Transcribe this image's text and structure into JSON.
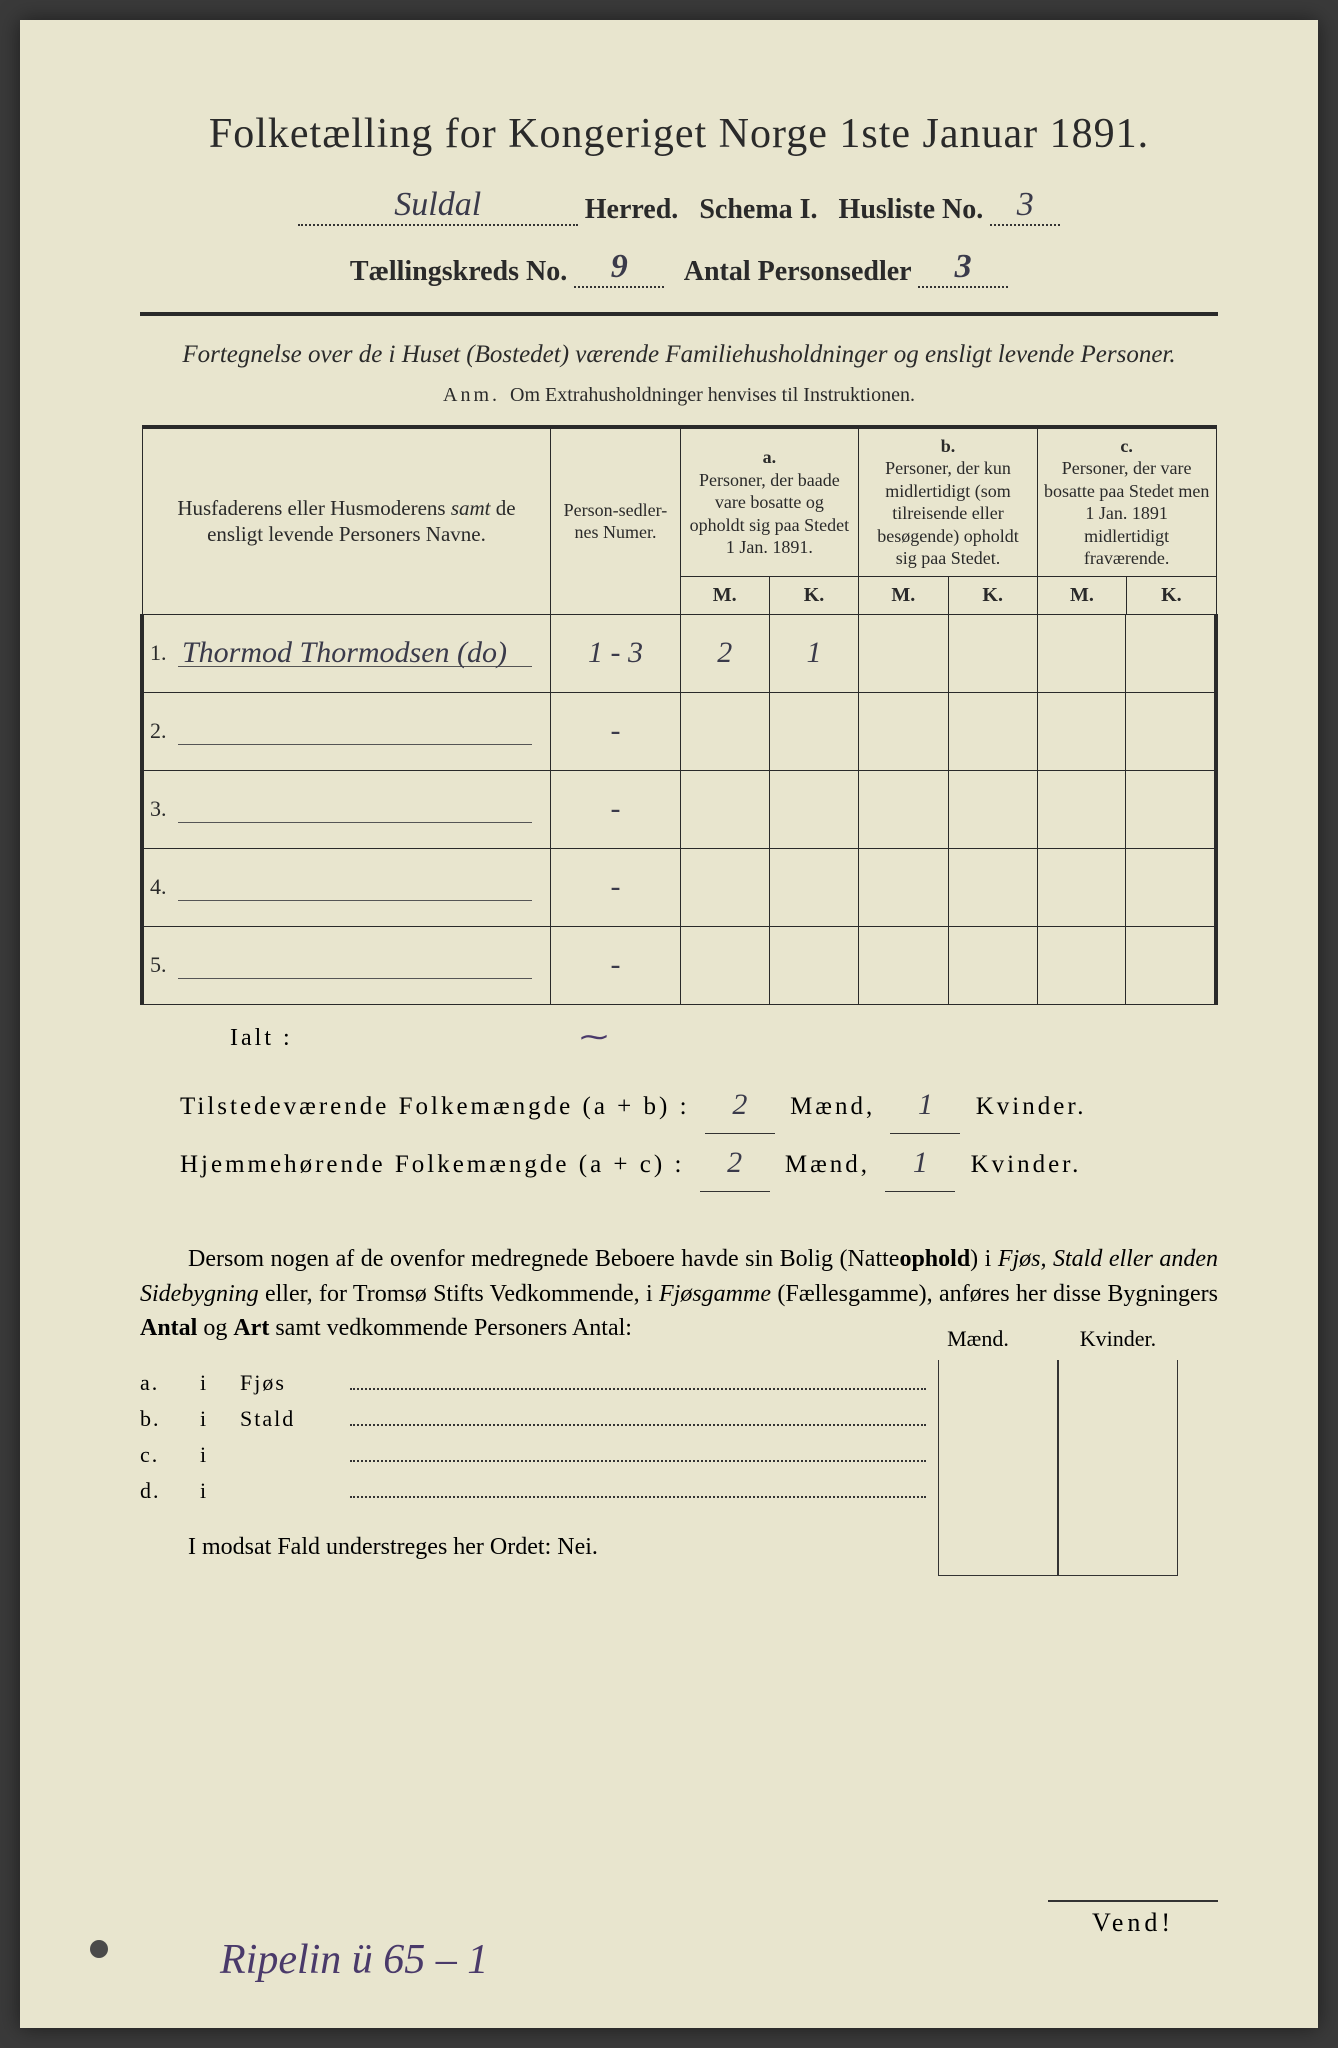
{
  "header": {
    "title": "Folketælling for Kongeriget Norge 1ste Januar 1891.",
    "herred_value": "Suldal",
    "herred_label": "Herred.",
    "schema_label": "Schema I.",
    "husliste_label": "Husliste No.",
    "husliste_value": "3",
    "kreds_label": "Tællingskreds No.",
    "kreds_value": "9",
    "sedler_label": "Antal Personsedler",
    "sedler_value": "3"
  },
  "subheading": "Fortegnelse over de i Huset (Bostedet) værende Familiehusholdninger og ensligt levende Personer.",
  "anm_label": "Anm.",
  "anm_text": "Om Extrahusholdninger henvises til Instruktionen.",
  "table": {
    "col_names": "Husfaderens eller Husmoderens samt de ensligt levende Personers Navne.",
    "col_num": "Person-sedler-nes Numer.",
    "col_a_tag": "a.",
    "col_a": "Personer, der baade vare bosatte og opholdt sig paa Stedet 1 Jan. 1891.",
    "col_b_tag": "b.",
    "col_b": "Personer, der kun midlertidigt (som tilreisende eller besøgende) opholdt sig paa Stedet.",
    "col_c_tag": "c.",
    "col_c": "Personer, der vare bosatte paa Stedet men 1 Jan. 1891 midlertidigt fraværende.",
    "m": "M.",
    "k": "K.",
    "rows": [
      {
        "n": "1.",
        "name": "Thormod Thormodsen (do)",
        "num": "1 - 3",
        "am": "2",
        "ak": "1",
        "bm": "",
        "bk": "",
        "cm": "",
        "ck": ""
      },
      {
        "n": "2.",
        "name": "",
        "num": "-",
        "am": "",
        "ak": "",
        "bm": "",
        "bk": "",
        "cm": "",
        "ck": ""
      },
      {
        "n": "3.",
        "name": "",
        "num": "-",
        "am": "",
        "ak": "",
        "bm": "",
        "bk": "",
        "cm": "",
        "ck": ""
      },
      {
        "n": "4.",
        "name": "",
        "num": "-",
        "am": "",
        "ak": "",
        "bm": "",
        "bk": "",
        "cm": "",
        "ck": ""
      },
      {
        "n": "5.",
        "name": "",
        "num": "-",
        "am": "",
        "ak": "",
        "bm": "",
        "bk": "",
        "cm": "",
        "ck": ""
      }
    ]
  },
  "ialt": "Ialt :",
  "totals": {
    "line1_label": "Tilstedeværende Folkemængde (a + b) :",
    "line2_label": "Hjemmehørende Folkemængde (a + c) :",
    "maend": "Mænd,",
    "kvinder": "Kvinder.",
    "l1_m": "2",
    "l1_k": "1",
    "l2_m": "2",
    "l2_k": "1"
  },
  "para": "Dersom nogen af de ovenfor medregnede Beboere havde sin Bolig (Natteophold) i Fjøs, Stald eller anden Sidebygning eller, for Tromsø Stifts Vedkommende, i Fjøsgamme (Fællesgamme), anføres her disse Bygningers Antal og Art samt vedkommende Personers Antal:",
  "sidebuildings": {
    "mk_m": "Mænd.",
    "mk_k": "Kvinder.",
    "rows": [
      {
        "tag": "a.",
        "i": "i",
        "type": "Fjøs"
      },
      {
        "tag": "b.",
        "i": "i",
        "type": "Stald"
      },
      {
        "tag": "c.",
        "i": "i",
        "type": ""
      },
      {
        "tag": "d.",
        "i": "i",
        "type": ""
      }
    ]
  },
  "nei": "I modsat Fald understreges her Ordet: Nei.",
  "vend": "Vend!",
  "bottom_handwritten": "Ripelin ü 65 – 1",
  "colors": {
    "paper": "#e8e5ce",
    "ink": "#2a2a2a",
    "handwriting": "#3a3a4a",
    "handwriting_purple": "#4a3a6a"
  }
}
